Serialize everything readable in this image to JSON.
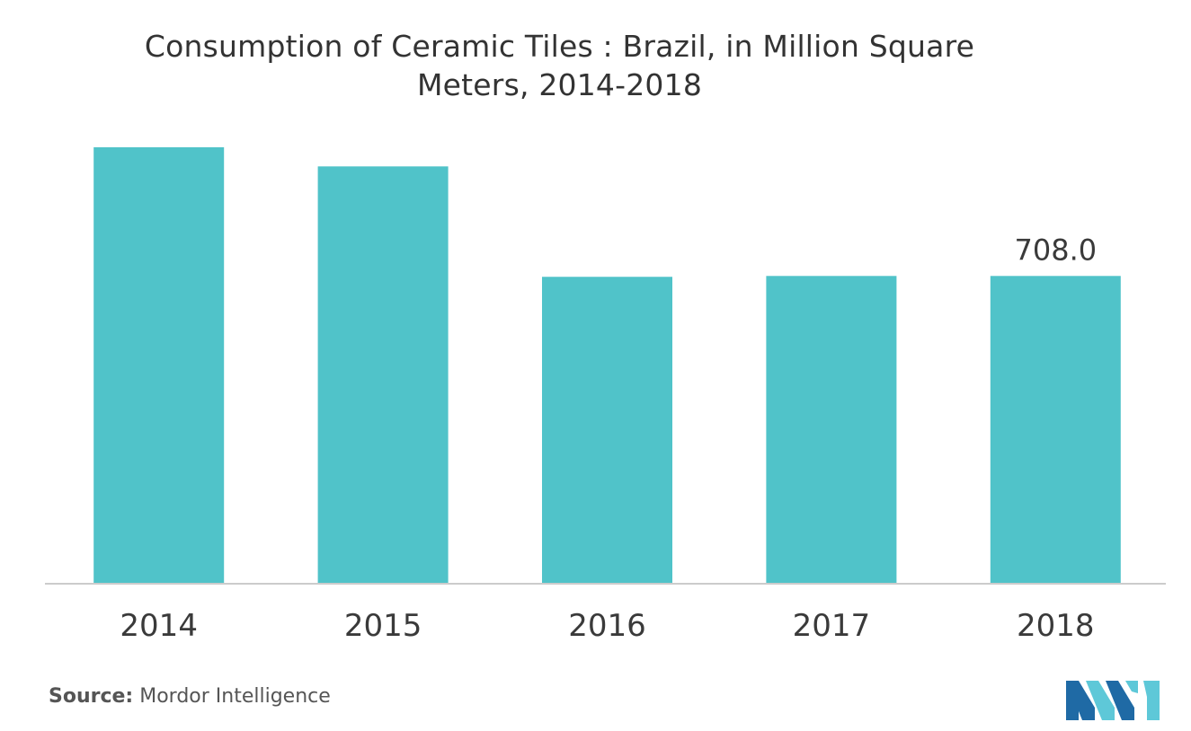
{
  "chart_data": {
    "type": "bar",
    "title_lines": [
      "Consumption of Ceramic Tiles : Brazil, in Million Square",
      "Meters,  2014-2018"
    ],
    "categories": [
      "2014",
      "2015",
      "2016",
      "2017",
      "2018"
    ],
    "values": [
      1004,
      960,
      706,
      708,
      708.0
    ],
    "data_labels": [
      "",
      "",
      "",
      "",
      "708.0"
    ],
    "bar_color": "#50c3c9",
    "ylim": [
      0,
      1000
    ],
    "grid": false,
    "legend": "none",
    "xlabel": "",
    "ylabel": ""
  },
  "source": {
    "label": "Source:",
    "text": " Mordor Intelligence"
  },
  "logo": {
    "icon": "mordor-intelligence-logo",
    "colors": [
      "#1f6aa5",
      "#5ec8d8"
    ]
  }
}
